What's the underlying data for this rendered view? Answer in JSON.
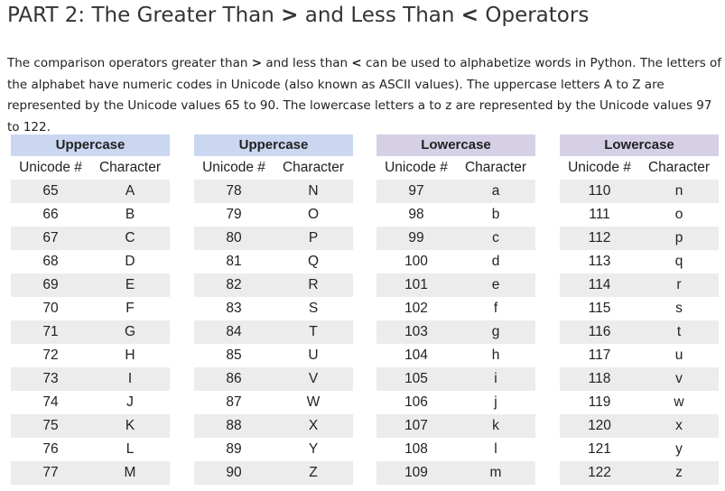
{
  "title": {
    "pre": "PART 2: The Greater Than ",
    "gt": ">",
    "mid": " and Less Than ",
    "lt": "<",
    "post": " Operators"
  },
  "intro": {
    "t1": "The comparison operators greater than ",
    "gt": ">",
    "t2": " and less than ",
    "lt": "<",
    "t3": " can be used to alphabetize words in Python. The letters of the alphabet have numeric codes in Unicode (also known as ASCII values). The uppercase letters A to Z are represented by the Unicode values 65 to 90. The lowercase letters a to z are represented by the Unicode values 97 to 122."
  },
  "colors": {
    "uppercase_header": "#cbd6f1",
    "lowercase_header": "#d6d0e6",
    "row_shade": "#ececec"
  },
  "tables": [
    {
      "header": "Uppercase",
      "col1": "Unicode #",
      "col2": "Character",
      "rows": [
        [
          "65",
          "A"
        ],
        [
          "66",
          "B"
        ],
        [
          "67",
          "C"
        ],
        [
          "68",
          "D"
        ],
        [
          "69",
          "E"
        ],
        [
          "70",
          "F"
        ],
        [
          "71",
          "G"
        ],
        [
          "72",
          "H"
        ],
        [
          "73",
          "I"
        ],
        [
          "74",
          "J"
        ],
        [
          "75",
          "K"
        ],
        [
          "76",
          "L"
        ],
        [
          "77",
          "M"
        ]
      ]
    },
    {
      "header": "Uppercase",
      "col1": "Unicode #",
      "col2": "Character",
      "rows": [
        [
          "78",
          "N"
        ],
        [
          "79",
          "O"
        ],
        [
          "80",
          "P"
        ],
        [
          "81",
          "Q"
        ],
        [
          "82",
          "R"
        ],
        [
          "83",
          "S"
        ],
        [
          "84",
          "T"
        ],
        [
          "85",
          "U"
        ],
        [
          "86",
          "V"
        ],
        [
          "87",
          "W"
        ],
        [
          "88",
          "X"
        ],
        [
          "89",
          "Y"
        ],
        [
          "90",
          "Z"
        ]
      ]
    },
    {
      "header": "Lowercase",
      "col1": "Unicode #",
      "col2": "Character",
      "rows": [
        [
          "97",
          "a"
        ],
        [
          "98",
          "b"
        ],
        [
          "99",
          "c"
        ],
        [
          "100",
          "d"
        ],
        [
          "101",
          "e"
        ],
        [
          "102",
          "f"
        ],
        [
          "103",
          "g"
        ],
        [
          "104",
          "h"
        ],
        [
          "105",
          "i"
        ],
        [
          "106",
          "j"
        ],
        [
          "107",
          "k"
        ],
        [
          "108",
          "l"
        ],
        [
          "109",
          "m"
        ]
      ]
    },
    {
      "header": "Lowercase",
      "col1": "Unicode #",
      "col2": "Character",
      "rows": [
        [
          "110",
          "n"
        ],
        [
          "111",
          "o"
        ],
        [
          "112",
          "p"
        ],
        [
          "113",
          "q"
        ],
        [
          "114",
          "r"
        ],
        [
          "115",
          "s"
        ],
        [
          "116",
          "t"
        ],
        [
          "117",
          "u"
        ],
        [
          "118",
          "v"
        ],
        [
          "119",
          "w"
        ],
        [
          "120",
          "x"
        ],
        [
          "121",
          "y"
        ],
        [
          "122",
          "z"
        ]
      ]
    }
  ]
}
